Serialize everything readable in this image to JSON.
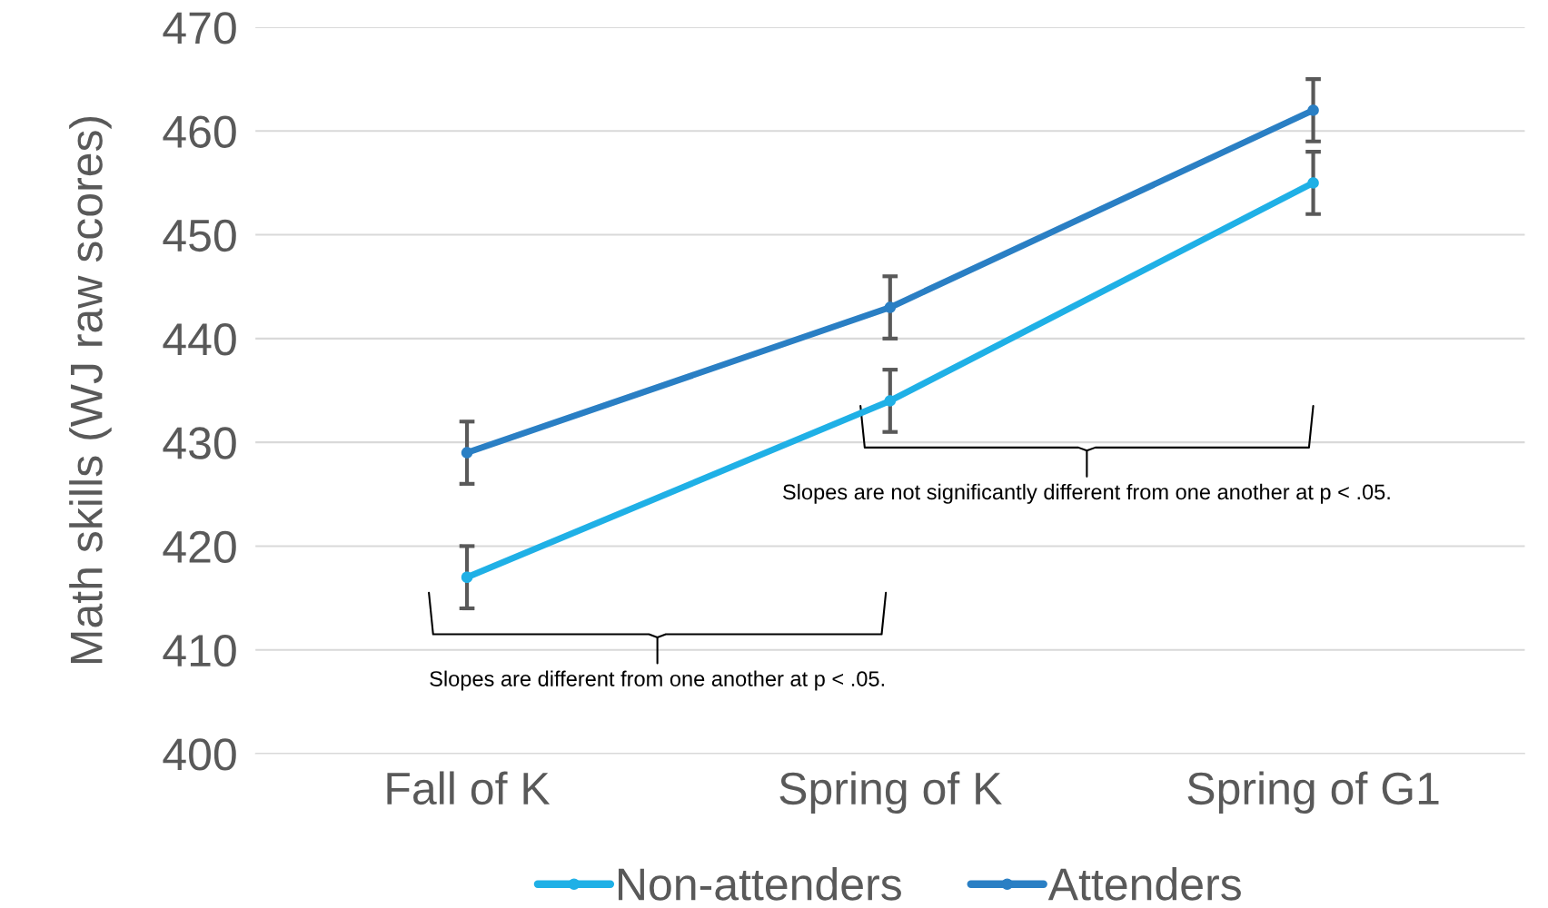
{
  "chart_data": {
    "type": "line",
    "ylabel": "Math skills (WJ raw scores)",
    "categories": [
      "Fall of K",
      "Spring of K",
      "Spring of G1"
    ],
    "series": [
      {
        "name": "Non-attenders",
        "color": "#1fb0e6",
        "values": [
          417,
          434,
          455
        ],
        "errors": [
          3,
          3,
          3
        ]
      },
      {
        "name": "Attenders",
        "color": "#2a7fc4",
        "values": [
          429,
          443,
          462
        ],
        "errors": [
          3,
          3,
          3
        ]
      }
    ],
    "ylim": [
      400,
      470
    ],
    "yticks": [
      400,
      410,
      420,
      430,
      440,
      450,
      460,
      470
    ],
    "grid": "y",
    "legend": "bottom",
    "marker": "circle",
    "line_style": "solid",
    "annotations": [
      "Slopes are different from one another at p < .05.",
      "Slopes are not significantly different from one another at p < .05."
    ]
  }
}
